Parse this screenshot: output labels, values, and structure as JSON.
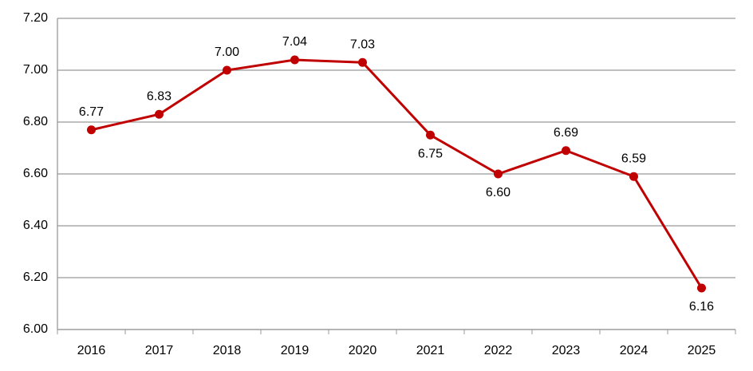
{
  "chart_data": {
    "type": "line",
    "categories": [
      "2016",
      "2017",
      "2018",
      "2019",
      "2020",
      "2021",
      "2022",
      "2023",
      "2024",
      "2025"
    ],
    "values": [
      6.77,
      6.83,
      7.0,
      7.04,
      7.03,
      6.75,
      6.6,
      6.69,
      6.59,
      6.16
    ],
    "value_labels": [
      "6.77",
      "6.83",
      "7.00",
      "7.04",
      "7.03",
      "6.75",
      "6.60",
      "6.69",
      "6.59",
      "6.16"
    ],
    "color": "#c00000",
    "ylim": [
      6,
      7.2
    ],
    "yticks": [
      {
        "value": 6,
        "label": "6.00"
      },
      {
        "value": 6.2,
        "label": "6.20"
      },
      {
        "value": 6.4,
        "label": "6.40"
      },
      {
        "value": 6.6,
        "label": "6.60"
      },
      {
        "value": 6.8,
        "label": "6.80"
      },
      {
        "value": 7,
        "label": "7.00"
      },
      {
        "value": 7.2,
        "label": "7.20"
      }
    ],
    "grid": true
  }
}
